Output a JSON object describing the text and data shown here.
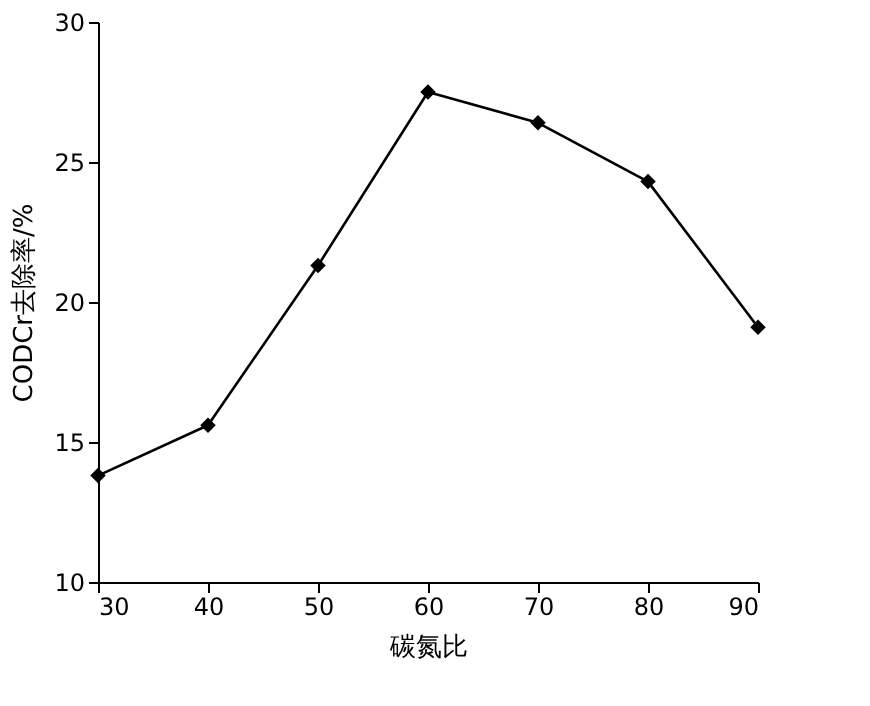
{
  "chart_data": {
    "type": "line",
    "xlabel": "碳氮比",
    "ylabel": "CODCr去除率/%",
    "x": [
      30,
      40,
      50,
      60,
      70,
      80,
      90
    ],
    "series": [
      {
        "color": "#000000",
        "values": [
          13.8,
          15.6,
          21.3,
          27.5,
          26.4,
          24.3,
          19.1
        ]
      }
    ],
    "xlim": [
      30,
      90
    ],
    "xticks": [
      30,
      40,
      50,
      60,
      70,
      80,
      90
    ],
    "ylim": [
      10,
      30
    ],
    "yticks": [
      10,
      15,
      20,
      25,
      30
    ],
    "marker": "diamond",
    "line_style": "solid",
    "grid": false,
    "legend": false
  }
}
